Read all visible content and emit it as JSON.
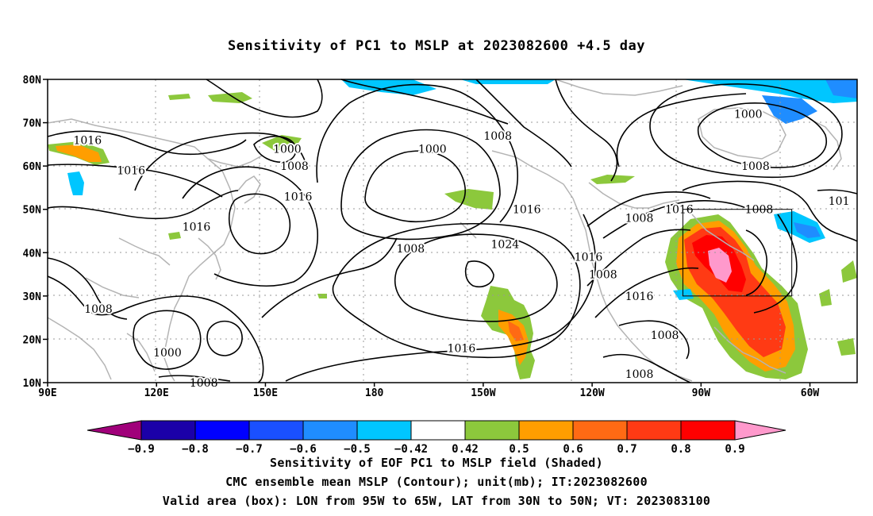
{
  "title": "Sensitivity of PC1 to MSLP at 2023082600 +4.5 day",
  "map": {
    "lat_labels": [
      "80N",
      "70N",
      "60N",
      "50N",
      "40N",
      "30N",
      "20N",
      "10N"
    ],
    "lon_labels": [
      "90E",
      "120E",
      "150E",
      "180",
      "150W",
      "120W",
      "90W",
      "60W"
    ],
    "extent": {
      "lon_min": 90,
      "lon_max": 313,
      "lat_min": 10,
      "lat_max": 80
    },
    "contour_labels": [
      {
        "text": "1016",
        "lon": 101,
        "lat": 66
      },
      {
        "text": "1016",
        "lon": 113,
        "lat": 59
      },
      {
        "text": "1000",
        "lon": 156,
        "lat": 64
      },
      {
        "text": "1008",
        "lon": 158,
        "lat": 60
      },
      {
        "text": "1016",
        "lon": 159,
        "lat": 53
      },
      {
        "text": "1016",
        "lon": 131,
        "lat": 46
      },
      {
        "text": "1000",
        "lon": 196,
        "lat": 64
      },
      {
        "text": "1008",
        "lon": 214,
        "lat": 67
      },
      {
        "text": "1016",
        "lon": 222,
        "lat": 50
      },
      {
        "text": "1024",
        "lon": 216,
        "lat": 42
      },
      {
        "text": "1008",
        "lon": 190,
        "lat": 41
      },
      {
        "text": "1016",
        "lon": 239,
        "lat": 39
      },
      {
        "text": "1008",
        "lon": 243,
        "lat": 35
      },
      {
        "text": "1016",
        "lon": 253,
        "lat": 30
      },
      {
        "text": "1008",
        "lon": 253,
        "lat": 48
      },
      {
        "text": "1008",
        "lon": 260,
        "lat": 21
      },
      {
        "text": "1008",
        "lon": 253,
        "lat": 12
      },
      {
        "text": "1016",
        "lon": 204,
        "lat": 18
      },
      {
        "text": "1008",
        "lon": 104,
        "lat": 27
      },
      {
        "text": "1000",
        "lon": 123,
        "lat": 17
      },
      {
        "text": "1008",
        "lon": 133,
        "lat": 10
      },
      {
        "text": "1016",
        "lon": 264,
        "lat": 50
      },
      {
        "text": "1008",
        "lon": 286,
        "lat": 50
      },
      {
        "text": "1008",
        "lon": 285,
        "lat": 60
      },
      {
        "text": "1000",
        "lon": 283,
        "lat": 72
      },
      {
        "text": "101",
        "lon": 308,
        "lat": 52
      }
    ],
    "valid_box": {
      "lon_min": 265,
      "lon_max": 295,
      "lat_min": 30,
      "lat_max": 50
    }
  },
  "colors": {
    "neg_0_9": "#a0007a",
    "neg_0_8": "#1b00a8",
    "neg_0_7": "#0000ff",
    "neg_0_6": "#1a50ff",
    "neg_0_5": "#1f8dff",
    "neg_0_42": "#00c6ff",
    "zero": "#ffffff",
    "pos_0_42": "#8cc83c",
    "pos_0_5": "#ff9e00",
    "pos_0_6": "#ff6a14",
    "pos_0_7": "#ff3a14",
    "pos_0_8": "#ff0000",
    "pos_0_9": "#ff99cc",
    "coast": "#b4b4b4",
    "contour": "#000000"
  },
  "colorbar": {
    "tick_labels": [
      "-0.9",
      "-0.8",
      "-0.7",
      "-0.6",
      "-0.5",
      "-0.42",
      "0.42",
      "0.5",
      "0.6",
      "0.7",
      "0.8",
      "0.9"
    ]
  },
  "captions": [
    "Sensitivity of EOF PC1 to MSLP field (Shaded)",
    "CMC ensemble mean MSLP (Contour); unit(mb); IT:2023082600",
    "Valid area (box): LON from 95W to 65W, LAT from 30N to 50N; VT: 2023083100"
  ]
}
